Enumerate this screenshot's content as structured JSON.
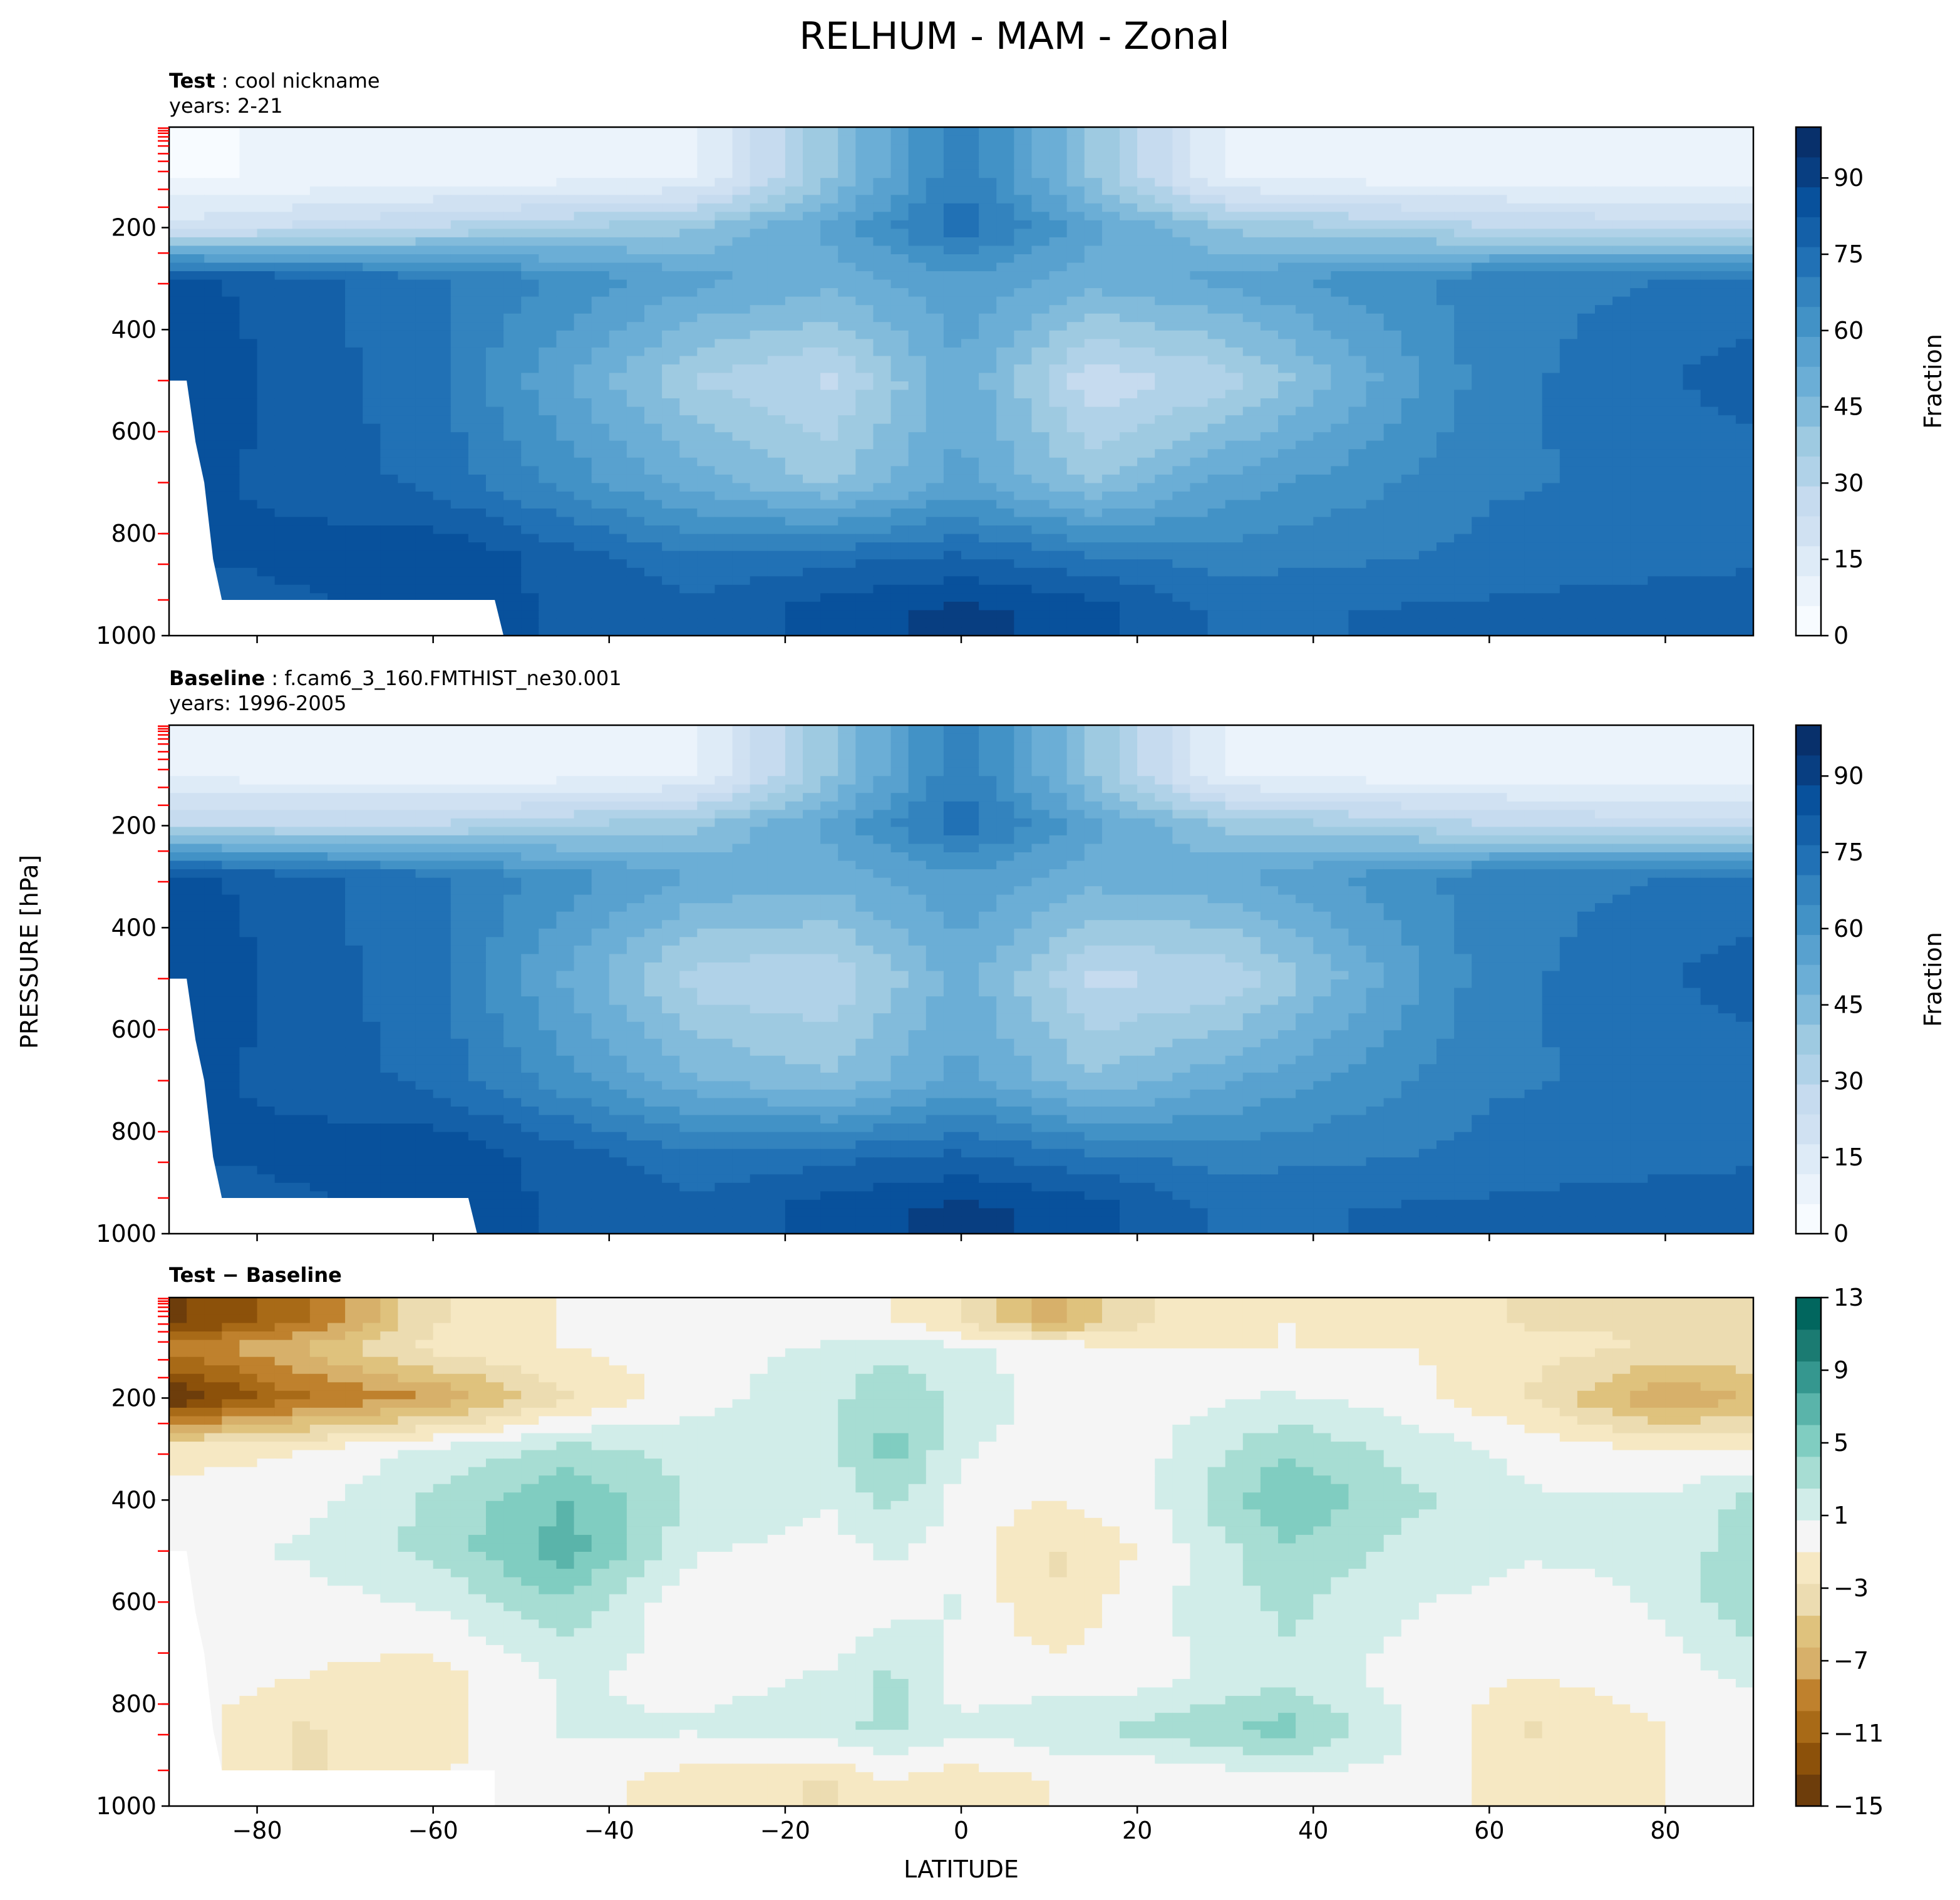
{
  "title": "RELHUM - MAM - Zonal",
  "colors": {
    "blues": [
      "#f7fbff",
      "#ebf3fb",
      "#deebf7",
      "#d0e1f2",
      "#c6dbef",
      "#b0d2e8",
      "#9ecae1",
      "#82bbdb",
      "#6baed6",
      "#58a1cf",
      "#4292c6",
      "#3383be",
      "#2171b5",
      "#1460a8",
      "#08519c",
      "#083e81",
      "#08306b"
    ],
    "brbg": [
      "#6d3d0b",
      "#8c510a",
      "#a86a17",
      "#bf812d",
      "#d7b06a",
      "#dfc27d",
      "#ecdcb1",
      "#f6e8c3",
      "#f5f5f5",
      "#d1ede9",
      "#a7ddd3",
      "#80cdc1",
      "#5ab4aa",
      "#35978f",
      "#1b7b72",
      "#01665e"
    ],
    "hatch_tick": "#ff0000"
  },
  "chart_data": [
    {
      "type": "heatmap",
      "panel": "test",
      "label_bold": "Test",
      "label_text": "cool nickname",
      "subtitle": "years: 2-21",
      "xlabel": "",
      "ylabel": "",
      "xlim": [
        -90,
        90
      ],
      "ylim": [
        1000,
        3
      ],
      "yticks": [
        200,
        400,
        600,
        800,
        1000
      ],
      "xticks": [
        -80,
        -60,
        -40,
        -20,
        0,
        20,
        40,
        60,
        80
      ],
      "colorbar": {
        "label": "Fraction",
        "range": [
          0,
          100
        ],
        "ticks": [
          0,
          15,
          30,
          45,
          60,
          75,
          90
        ]
      },
      "approximate_field": {
        "lat": [
          -90,
          -60,
          -30,
          -15,
          0,
          15,
          30,
          60,
          90
        ],
        "p": [
          100,
          200,
          300,
          500,
          700,
          850,
          950
        ],
        "values": [
          [
            5,
            8,
            10,
            40,
            70,
            40,
            10,
            8,
            8
          ],
          [
            20,
            30,
            40,
            55,
            75,
            55,
            40,
            30,
            25
          ],
          [
            85,
            72,
            55,
            50,
            58,
            50,
            55,
            68,
            72
          ],
          [
            88,
            72,
            35,
            28,
            52,
            25,
            32,
            68,
            80
          ],
          [
            85,
            75,
            50,
            40,
            55,
            40,
            55,
            70,
            72
          ],
          [
            82,
            88,
            72,
            75,
            78,
            72,
            68,
            72,
            75
          ],
          [
            75,
            85,
            78,
            85,
            90,
            85,
            75,
            78,
            82
          ]
        ]
      }
    },
    {
      "type": "heatmap",
      "panel": "baseline",
      "label_bold": "Baseline",
      "label_text": "f.cam6_3_160.FMTHIST_ne30.001",
      "subtitle": "years: 1996-2005",
      "xlabel": "",
      "ylabel": "PRESSURE [hPa]",
      "xlim": [
        -90,
        90
      ],
      "ylim": [
        1000,
        3
      ],
      "yticks": [
        200,
        400,
        600,
        800,
        1000
      ],
      "xticks": [
        -80,
        -60,
        -40,
        -20,
        0,
        20,
        40,
        60,
        80
      ],
      "colorbar": {
        "label": "Fraction",
        "range": [
          0,
          100
        ],
        "ticks": [
          0,
          15,
          30,
          45,
          60,
          75,
          90
        ]
      },
      "approximate_field": {
        "lat": [
          -90,
          -60,
          -30,
          -15,
          0,
          15,
          30,
          60,
          90
        ],
        "p": [
          100,
          200,
          300,
          500,
          700,
          850,
          950
        ],
        "values": [
          [
            10,
            8,
            10,
            40,
            70,
            40,
            10,
            8,
            8
          ],
          [
            30,
            30,
            40,
            55,
            75,
            55,
            40,
            30,
            25
          ],
          [
            85,
            72,
            52,
            50,
            58,
            50,
            52,
            68,
            72
          ],
          [
            88,
            72,
            32,
            30,
            50,
            28,
            30,
            68,
            80
          ],
          [
            85,
            75,
            48,
            42,
            55,
            42,
            52,
            70,
            72
          ],
          [
            82,
            88,
            72,
            75,
            78,
            72,
            68,
            72,
            75
          ],
          [
            75,
            85,
            78,
            85,
            90,
            85,
            75,
            78,
            82
          ]
        ]
      }
    },
    {
      "type": "heatmap",
      "panel": "diff",
      "label_bold": "Test − Baseline",
      "label_text": "",
      "subtitle": "",
      "xlabel": "LATITUDE",
      "ylabel": "",
      "xlim": [
        -90,
        90
      ],
      "ylim": [
        1000,
        3
      ],
      "yticks": [
        200,
        400,
        600,
        800,
        1000
      ],
      "xticks": [
        -80,
        -60,
        -40,
        -20,
        0,
        20,
        40,
        60,
        80
      ],
      "colorbar": {
        "label": "",
        "range": [
          -15,
          13
        ],
        "ticks": [
          -15,
          -11,
          -7,
          -3,
          1,
          5,
          9,
          13
        ]
      },
      "approximate_field": {
        "lat": [
          -90,
          -75,
          -60,
          -45,
          -30,
          -15,
          -8,
          0,
          10,
          20,
          37,
          50,
          65,
          80,
          90
        ],
        "p": [
          50,
          100,
          200,
          300,
          400,
          500,
          600,
          750,
          850,
          950
        ],
        "values": [
          [
            -14,
            -10,
            -3,
            -1,
            -1,
            -1,
            -1,
            -3,
            -7,
            -3,
            -1,
            -2,
            -3,
            -3,
            -3
          ],
          [
            -9,
            -6,
            -2,
            -1,
            0,
            1,
            2,
            1,
            0,
            -1,
            -1,
            -1,
            -2,
            -3,
            -3
          ],
          [
            -15,
            -10,
            -8,
            -3,
            0,
            2,
            4,
            2,
            0,
            0,
            1,
            0,
            -3,
            -8,
            -6
          ],
          [
            -2,
            -1,
            1,
            3,
            2,
            2,
            5,
            1,
            0,
            0,
            4,
            2,
            0,
            -1,
            -1
          ],
          [
            0,
            0,
            3,
            6,
            2,
            1,
            3,
            0,
            -1,
            0,
            6,
            3,
            1,
            1,
            3
          ],
          [
            0,
            1,
            3,
            7,
            1,
            0,
            1,
            0,
            -3,
            -1,
            4,
            2,
            1,
            1,
            4
          ],
          [
            0,
            0,
            1,
            4,
            -1,
            -1,
            0,
            1,
            -3,
            0,
            3,
            1,
            0,
            1,
            4
          ],
          [
            0,
            -1,
            -2,
            1,
            0,
            1,
            3,
            0,
            0,
            0,
            2,
            0,
            -1,
            0,
            1
          ],
          [
            0,
            -3,
            -2,
            1,
            1,
            2,
            3,
            1,
            2,
            3,
            5,
            1,
            -3,
            -1,
            0
          ],
          [
            0,
            -3,
            -1,
            0,
            -2,
            -3,
            -1,
            -2,
            -1,
            -1,
            0,
            0,
            -2,
            -1,
            -1
          ]
        ]
      }
    }
  ]
}
